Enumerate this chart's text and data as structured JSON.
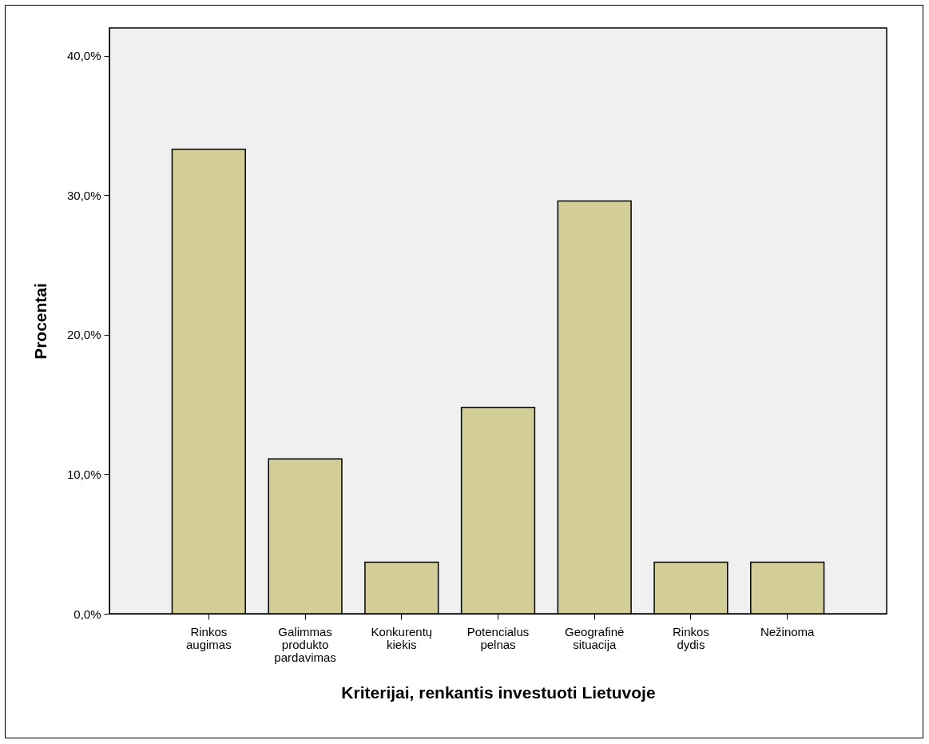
{
  "chart_data": {
    "type": "bar",
    "xlabel": "Kriterijai, renkantis investuoti Lietuvoje",
    "ylabel": "Procentai",
    "categories": [
      "Rinkos augimas",
      "Galimmas produkto pardavimas",
      "Konkurentų kiekis",
      "Potencialus pelnas",
      "Geografinė situacija",
      "Rinkos dydis",
      "Nežinoma"
    ],
    "values": [
      33.3,
      11.1,
      3.7,
      14.8,
      29.6,
      3.7,
      3.7
    ],
    "color": "#d3ce98",
    "ylim": [
      0,
      42
    ],
    "yticks": [
      {
        "value": 0,
        "label": "0,0%"
      },
      {
        "value": 10,
        "label": "10,0%"
      },
      {
        "value": 20,
        "label": "20,0%"
      },
      {
        "value": 30,
        "label": "30,0%"
      },
      {
        "value": 40,
        "label": "40,0%"
      }
    ],
    "grid": false
  }
}
